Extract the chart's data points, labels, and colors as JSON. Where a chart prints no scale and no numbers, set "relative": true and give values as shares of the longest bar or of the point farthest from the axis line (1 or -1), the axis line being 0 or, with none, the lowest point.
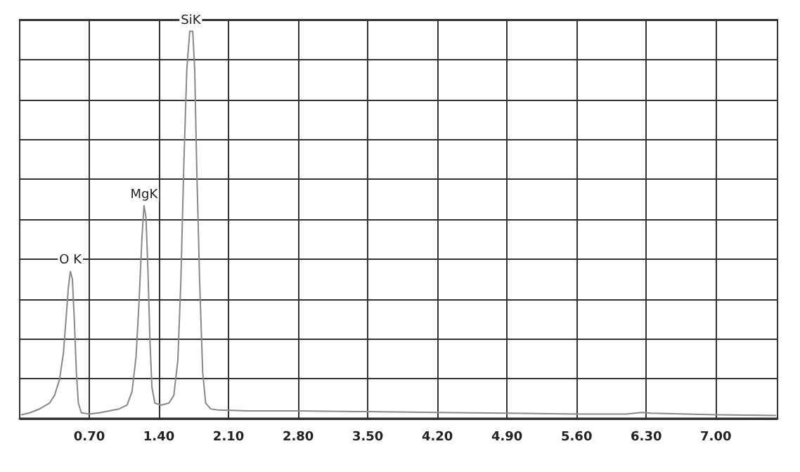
{
  "chart_data": {
    "type": "line",
    "relative": true,
    "grid": true,
    "marker": "none",
    "line_style": "solid",
    "x": [
      0.02,
      0.1,
      0.2,
      0.3,
      0.35,
      0.4,
      0.44,
      0.47,
      0.49,
      0.51,
      0.53,
      0.55,
      0.57,
      0.59,
      0.62,
      0.7,
      0.8,
      0.9,
      1.0,
      1.08,
      1.13,
      1.17,
      1.2,
      1.23,
      1.25,
      1.27,
      1.29,
      1.31,
      1.33,
      1.36,
      1.42,
      1.5,
      1.55,
      1.59,
      1.62,
      1.65,
      1.68,
      1.71,
      1.74,
      1.76,
      1.78,
      1.81,
      1.84,
      1.87,
      1.92,
      2.0,
      2.3,
      2.8,
      3.5,
      4.2,
      4.9,
      5.6,
      6.1,
      6.25,
      6.35,
      7.0,
      7.6
    ],
    "series": [
      {
        "color": "#888888",
        "values": [
          0.01,
          0.015,
          0.025,
          0.04,
          0.06,
          0.1,
          0.17,
          0.27,
          0.34,
          0.38,
          0.36,
          0.25,
          0.12,
          0.04,
          0.015,
          0.012,
          0.015,
          0.02,
          0.025,
          0.035,
          0.07,
          0.16,
          0.3,
          0.47,
          0.55,
          0.52,
          0.38,
          0.2,
          0.08,
          0.04,
          0.035,
          0.04,
          0.06,
          0.15,
          0.35,
          0.65,
          0.9,
          1.0,
          1.0,
          0.9,
          0.65,
          0.35,
          0.12,
          0.04,
          0.025,
          0.022,
          0.02,
          0.02,
          0.018,
          0.016,
          0.014,
          0.012,
          0.012,
          0.016,
          0.014,
          0.01,
          0.008
        ]
      }
    ],
    "xlim": [
      0,
      7.62
    ],
    "xticks": [
      {
        "value": 0.7,
        "label": "0.70"
      },
      {
        "value": 1.4,
        "label": "1.40"
      },
      {
        "value": 2.1,
        "label": "2.10"
      },
      {
        "value": 2.8,
        "label": "2.80"
      },
      {
        "value": 3.5,
        "label": "3.50"
      },
      {
        "value": 4.2,
        "label": "4.20"
      },
      {
        "value": 4.9,
        "label": "4.90"
      },
      {
        "value": 5.6,
        "label": "5.60"
      },
      {
        "value": 6.3,
        "label": "6.30"
      },
      {
        "value": 7.0,
        "label": "7.00"
      }
    ],
    "annotations": [
      {
        "text": "O K",
        "x": 0.51,
        "y": 0.38
      },
      {
        "text": "MgK",
        "x": 1.25,
        "y": 0.55
      },
      {
        "text": "SiK",
        "x": 1.72,
        "y": 1.0
      }
    ]
  }
}
